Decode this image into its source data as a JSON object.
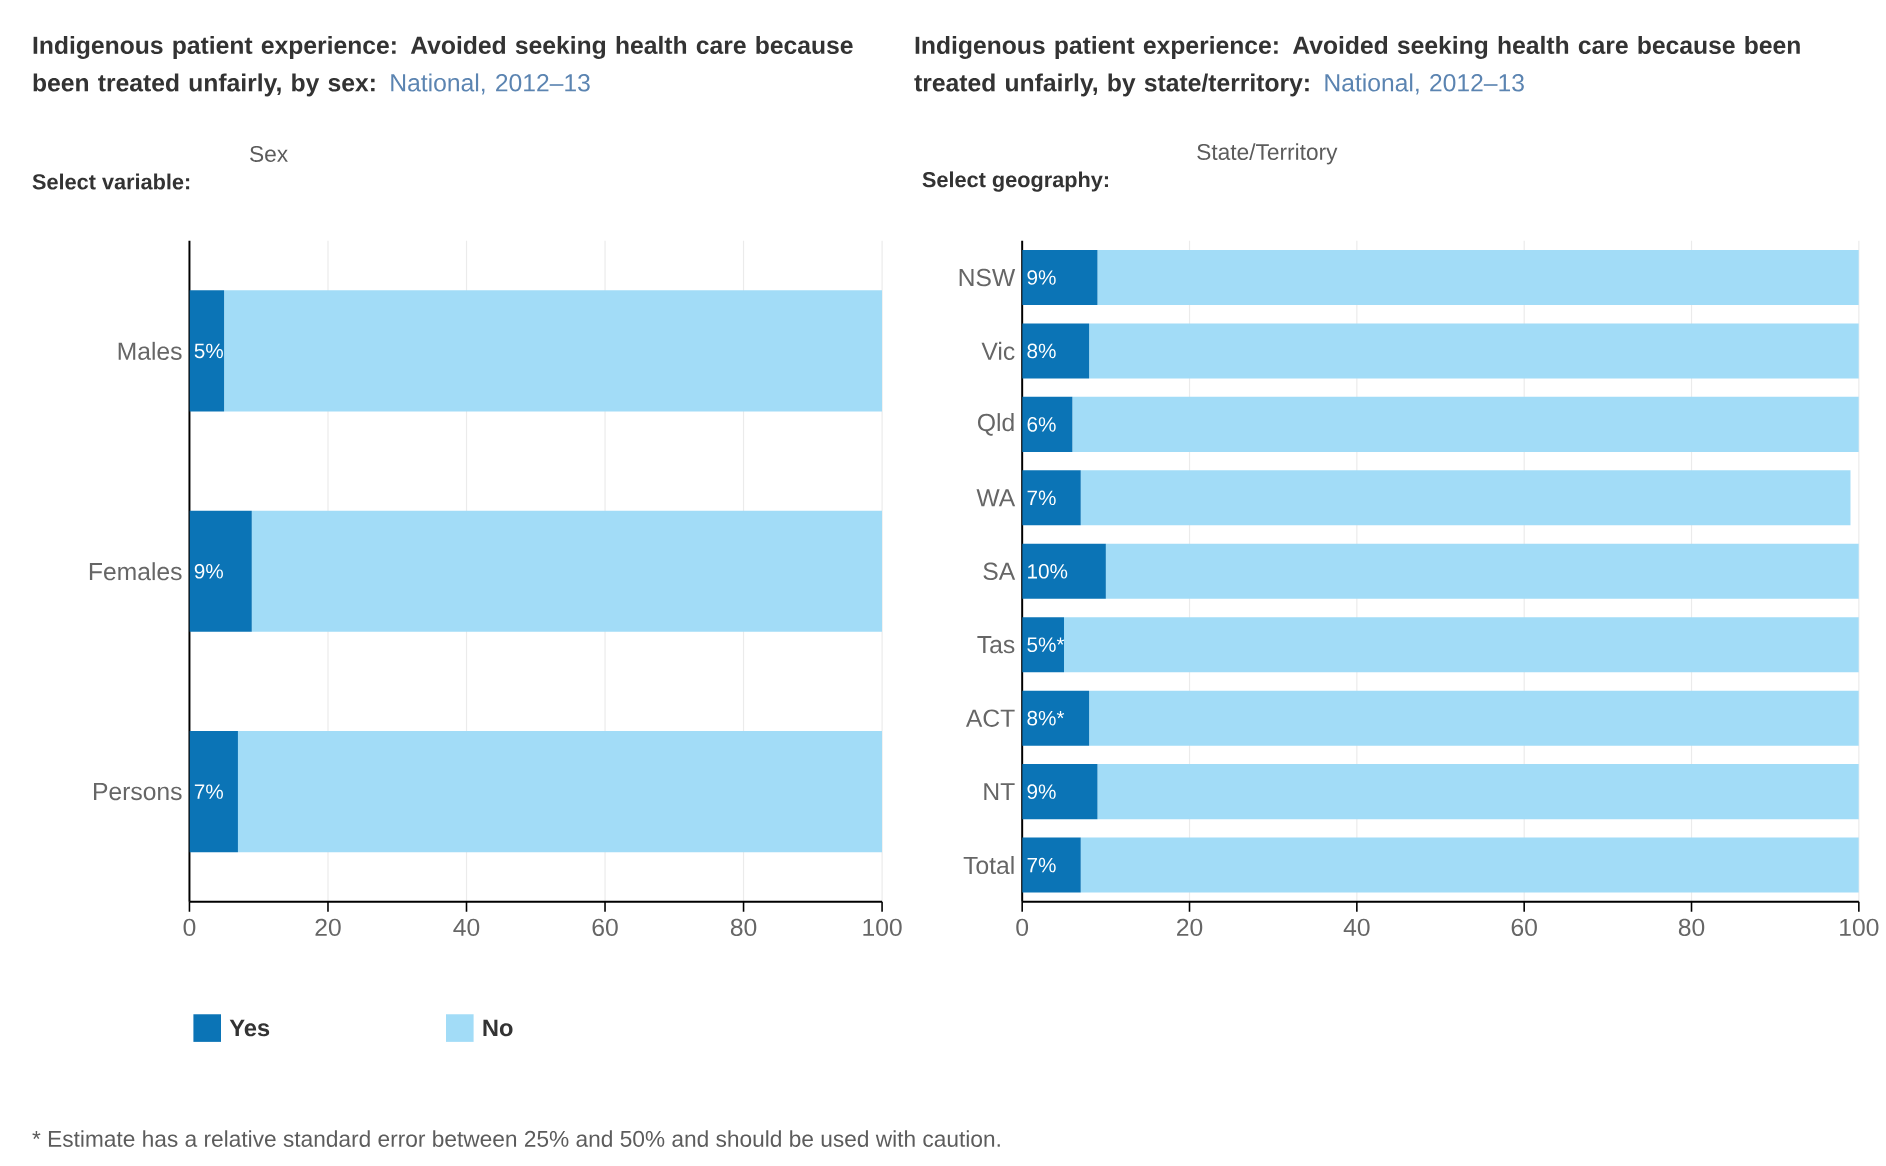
{
  "chart_data": [
    {
      "type": "bar",
      "orientation": "horizontal",
      "stacked": true,
      "title": "Indigenous patient experience: Avoided seeking health care because been treated unfairly, by sex:",
      "subtitle": "National, 2012–13",
      "categories": [
        "Males",
        "Females",
        "Persons"
      ],
      "series": [
        {
          "name": "Yes",
          "color": "#0b74b6",
          "values": [
            5,
            9,
            7
          ],
          "value_labels": [
            "5%",
            "9%",
            "7%"
          ]
        },
        {
          "name": "No",
          "color": "#a2dcf7",
          "values": [
            95,
            91,
            93
          ]
        }
      ],
      "xlim": [
        0,
        100
      ],
      "xticks": [
        0,
        20,
        40,
        60,
        80,
        100
      ],
      "grid": "x",
      "legend": "bottom",
      "annotations": [
        "Select variable:",
        "Sex",
        "* Estimate has a relative standard error between 25% and 50% and should be used with caution."
      ]
    },
    {
      "type": "bar",
      "orientation": "horizontal",
      "stacked": true,
      "title": "Indigenous patient experience: Avoided seeking health care because been treated unfairly, by state/territory:",
      "subtitle": "National, 2012–13",
      "categories": [
        "NSW",
        "Vic",
        "Qld",
        "WA",
        "SA",
        "Tas",
        "ACT",
        "NT",
        "Total"
      ],
      "series": [
        {
          "color": "#0b74b6",
          "values": [
            9,
            8,
            6,
            7,
            10,
            5,
            8,
            9,
            7
          ],
          "value_labels": [
            "9%",
            "8%",
            "6%",
            "7%",
            "10%",
            "5%*",
            "8%*",
            "9%",
            "7%"
          ]
        },
        {
          "color": "#a2dcf7",
          "values": [
            91,
            92,
            94,
            92,
            90,
            95,
            92,
            91,
            93
          ]
        }
      ],
      "xlim": [
        0,
        100
      ],
      "xticks": [
        0,
        20,
        40,
        60,
        80,
        100
      ],
      "grid": "x",
      "annotations": [
        "Select geography:",
        "State/Territory"
      ]
    }
  ]
}
